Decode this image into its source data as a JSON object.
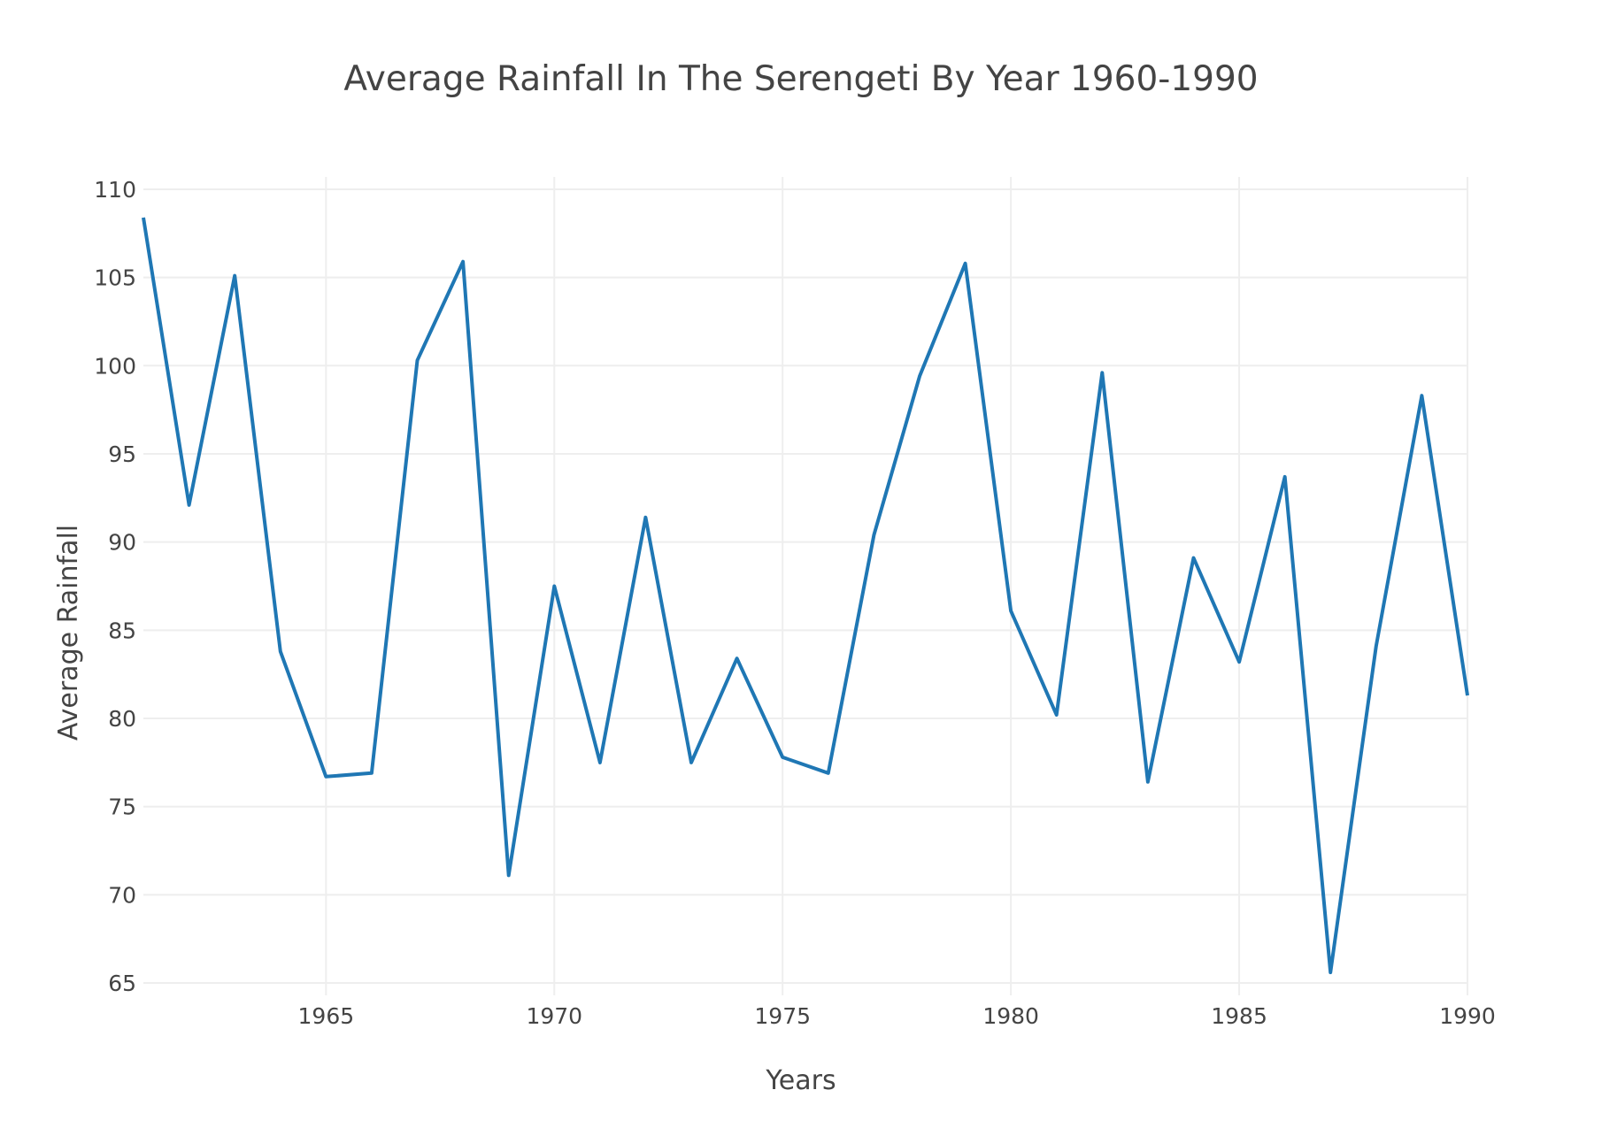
{
  "chart_data": {
    "type": "line",
    "title": "Average Rainfall In The Serengeti By Year 1960-1990",
    "xlabel": "Years",
    "ylabel": "Average Rainfall",
    "xlim": [
      1961,
      1990
    ],
    "ylim": [
      64.3,
      110.7
    ],
    "x_ticks": [
      1965,
      1970,
      1975,
      1980,
      1985,
      1990
    ],
    "y_ticks": [
      65,
      70,
      75,
      80,
      85,
      90,
      95,
      100,
      105,
      110
    ],
    "grid": true,
    "legend": "none",
    "series": [
      {
        "color": "#1f77b4",
        "x": [
          1961,
          1962,
          1963,
          1964,
          1965,
          1966,
          1967,
          1968,
          1969,
          1970,
          1971,
          1972,
          1973,
          1974,
          1975,
          1976,
          1977,
          1978,
          1979,
          1980,
          1981,
          1982,
          1983,
          1984,
          1985,
          1986,
          1987,
          1988,
          1989,
          1990
        ],
        "y": [
          108.4,
          92.1,
          105.1,
          83.8,
          76.7,
          76.9,
          100.3,
          105.9,
          71.1,
          87.5,
          77.5,
          91.4,
          77.5,
          83.4,
          77.8,
          76.9,
          90.4,
          99.4,
          105.8,
          86.1,
          80.2,
          99.6,
          76.4,
          89.1,
          83.2,
          93.7,
          65.6,
          84.1,
          98.3,
          81.3
        ]
      }
    ]
  }
}
